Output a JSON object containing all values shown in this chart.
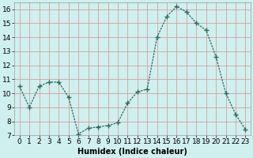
{
  "x": [
    0,
    1,
    2,
    3,
    4,
    5,
    6,
    7,
    8,
    9,
    10,
    11,
    12,
    13,
    14,
    15,
    16,
    17,
    18,
    19,
    20,
    21,
    22,
    23
  ],
  "y": [
    10.5,
    9.0,
    10.5,
    10.8,
    10.8,
    9.7,
    7.1,
    7.5,
    7.6,
    7.7,
    7.9,
    9.3,
    10.1,
    10.3,
    14.0,
    15.5,
    16.2,
    15.8,
    15.0,
    14.5,
    12.6,
    10.0,
    8.5,
    7.4
  ],
  "line_color": "#2e6b5e",
  "marker": "P",
  "marker_size": 2.5,
  "bg_color": "#cff0ee",
  "grid_color": "#d4a0a0",
  "xlabel": "Humidex (Indice chaleur)",
  "xlim": [
    -0.5,
    23.5
  ],
  "ylim": [
    7,
    16.5
  ],
  "yticks": [
    7,
    8,
    9,
    10,
    11,
    12,
    13,
    14,
    15,
    16
  ],
  "xticks": [
    0,
    1,
    2,
    3,
    4,
    5,
    6,
    7,
    8,
    9,
    10,
    11,
    12,
    13,
    14,
    15,
    16,
    17,
    18,
    19,
    20,
    21,
    22,
    23
  ],
  "label_fontsize": 7,
  "tick_fontsize": 6.5
}
